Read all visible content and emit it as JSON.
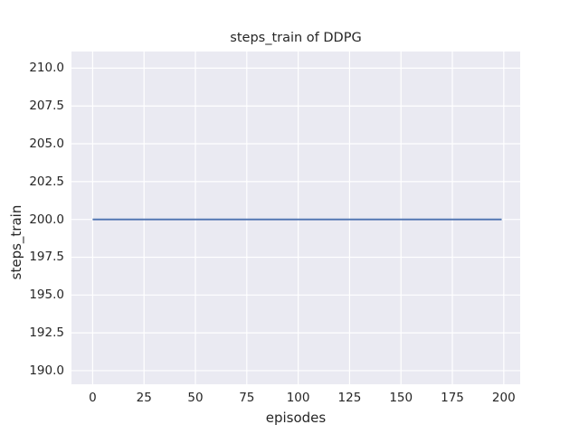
{
  "chart_data": {
    "type": "line",
    "title": "steps_train of DDPG",
    "xlabel": "episodes",
    "ylabel": "steps_train",
    "xlim": [
      -10.3,
      208.0
    ],
    "ylim": [
      189.1,
      211.1
    ],
    "xticks": [
      0,
      25,
      50,
      75,
      100,
      125,
      150,
      175,
      200
    ],
    "xtick_labels": [
      "0",
      "25",
      "50",
      "75",
      "100",
      "125",
      "150",
      "175",
      "200"
    ],
    "yticks": [
      190.0,
      192.5,
      195.0,
      197.5,
      200.0,
      202.5,
      205.0,
      207.5,
      210.0
    ],
    "ytick_labels": [
      "190.0",
      "192.5",
      "195.0",
      "197.5",
      "200.0",
      "202.5",
      "205.0",
      "207.5",
      "210.0"
    ],
    "grid": true,
    "legend_position": null,
    "style": {
      "plot_bg": "#eaeaf2",
      "grid_color": "#ffffff",
      "text_color": "#262626",
      "page_bg": "#ffffff"
    },
    "series": [
      {
        "name": "steps_train",
        "color": "#4c72b0",
        "x": [
          0,
          199
        ],
        "y": [
          200,
          200
        ]
      }
    ]
  }
}
